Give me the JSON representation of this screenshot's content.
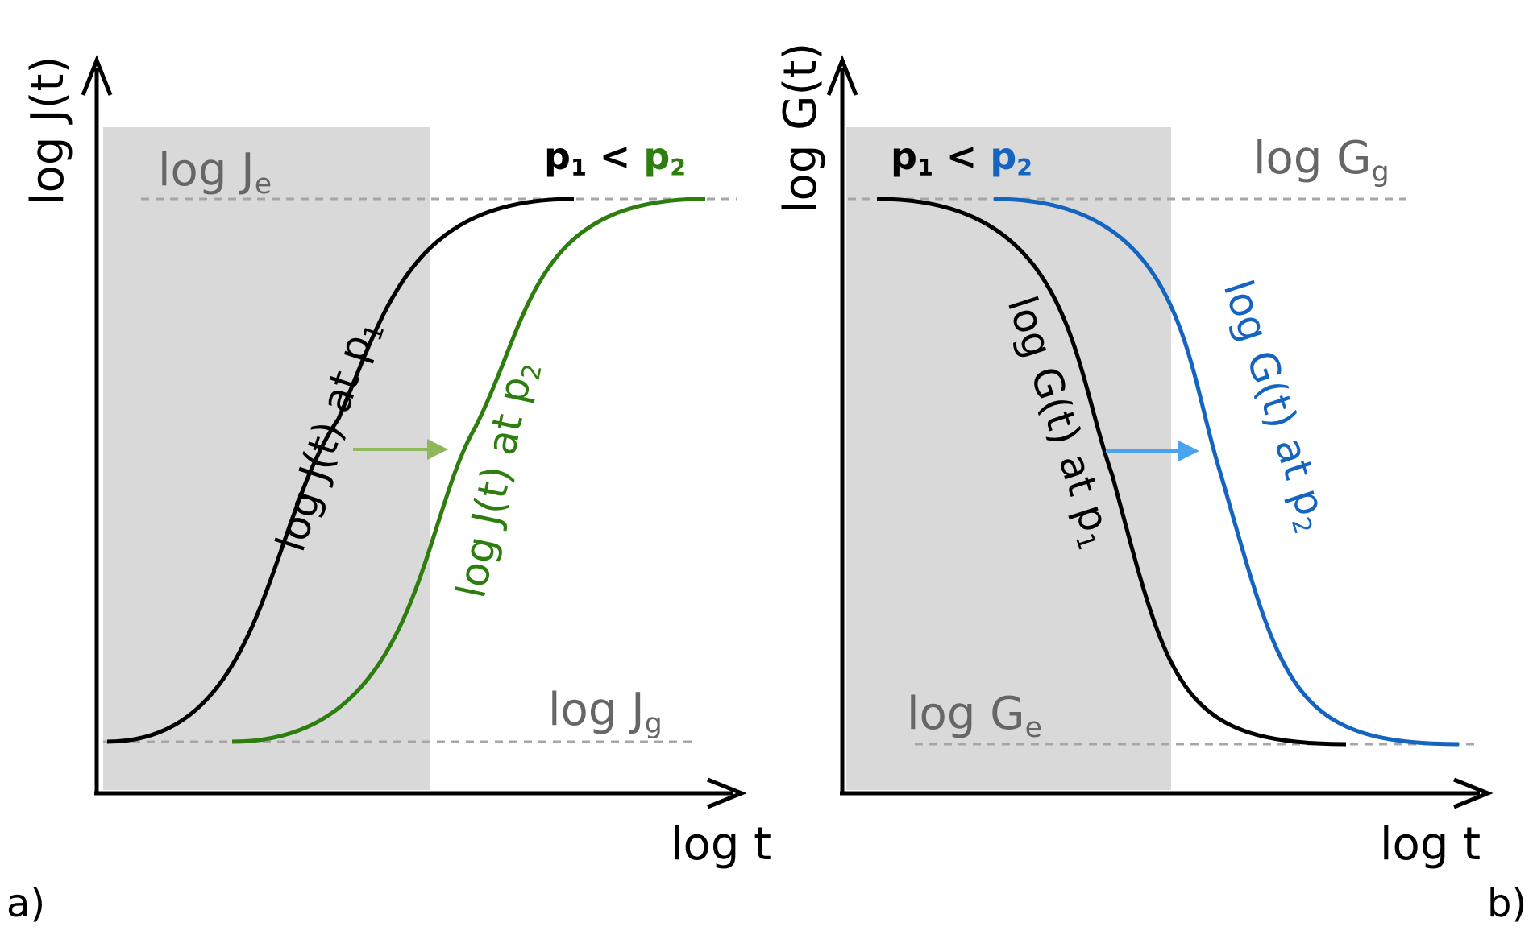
{
  "panel_a": {
    "tag": "a)",
    "y_axis_label": "log J(t)",
    "x_axis_label": "log t",
    "upper_asymptote": {
      "base": "log J",
      "sub": "e"
    },
    "lower_asymptote": {
      "base": "log J",
      "sub": "g"
    },
    "comparison": {
      "p1": "p",
      "p1_sub": "1",
      "op": " < ",
      "p2": "p",
      "p2_sub": "2"
    },
    "curve_p1": {
      "base": "log J(t) at p",
      "sub": "1",
      "color": "#000000"
    },
    "curve_p2": {
      "base": "log J(t) at p",
      "sub": "2",
      "color": "#2e7d0f"
    },
    "shift_arrow_color": "#8fb85a"
  },
  "panel_b": {
    "tag": "b)",
    "y_axis_label": "log G(t)",
    "x_axis_label": "log t",
    "upper_asymptote": {
      "base": "log G",
      "sub": "g"
    },
    "lower_asymptote": {
      "base": "log G",
      "sub": "e"
    },
    "comparison": {
      "p1": "p",
      "p1_sub": "1",
      "op": " < ",
      "p2": "p",
      "p2_sub": "2"
    },
    "curve_p1": {
      "base": "log G(t) at p",
      "sub": "1",
      "color": "#000000"
    },
    "curve_p2": {
      "base": "log G(t) at p",
      "sub": "2",
      "color": "#1565c0"
    },
    "shift_arrow_color": "#4aa3ef"
  },
  "colors": {
    "glassy_region": "#d9d9d9",
    "asymptote_line": "#a6a6a6",
    "axis": "#000000",
    "muted_text": "#666666"
  }
}
